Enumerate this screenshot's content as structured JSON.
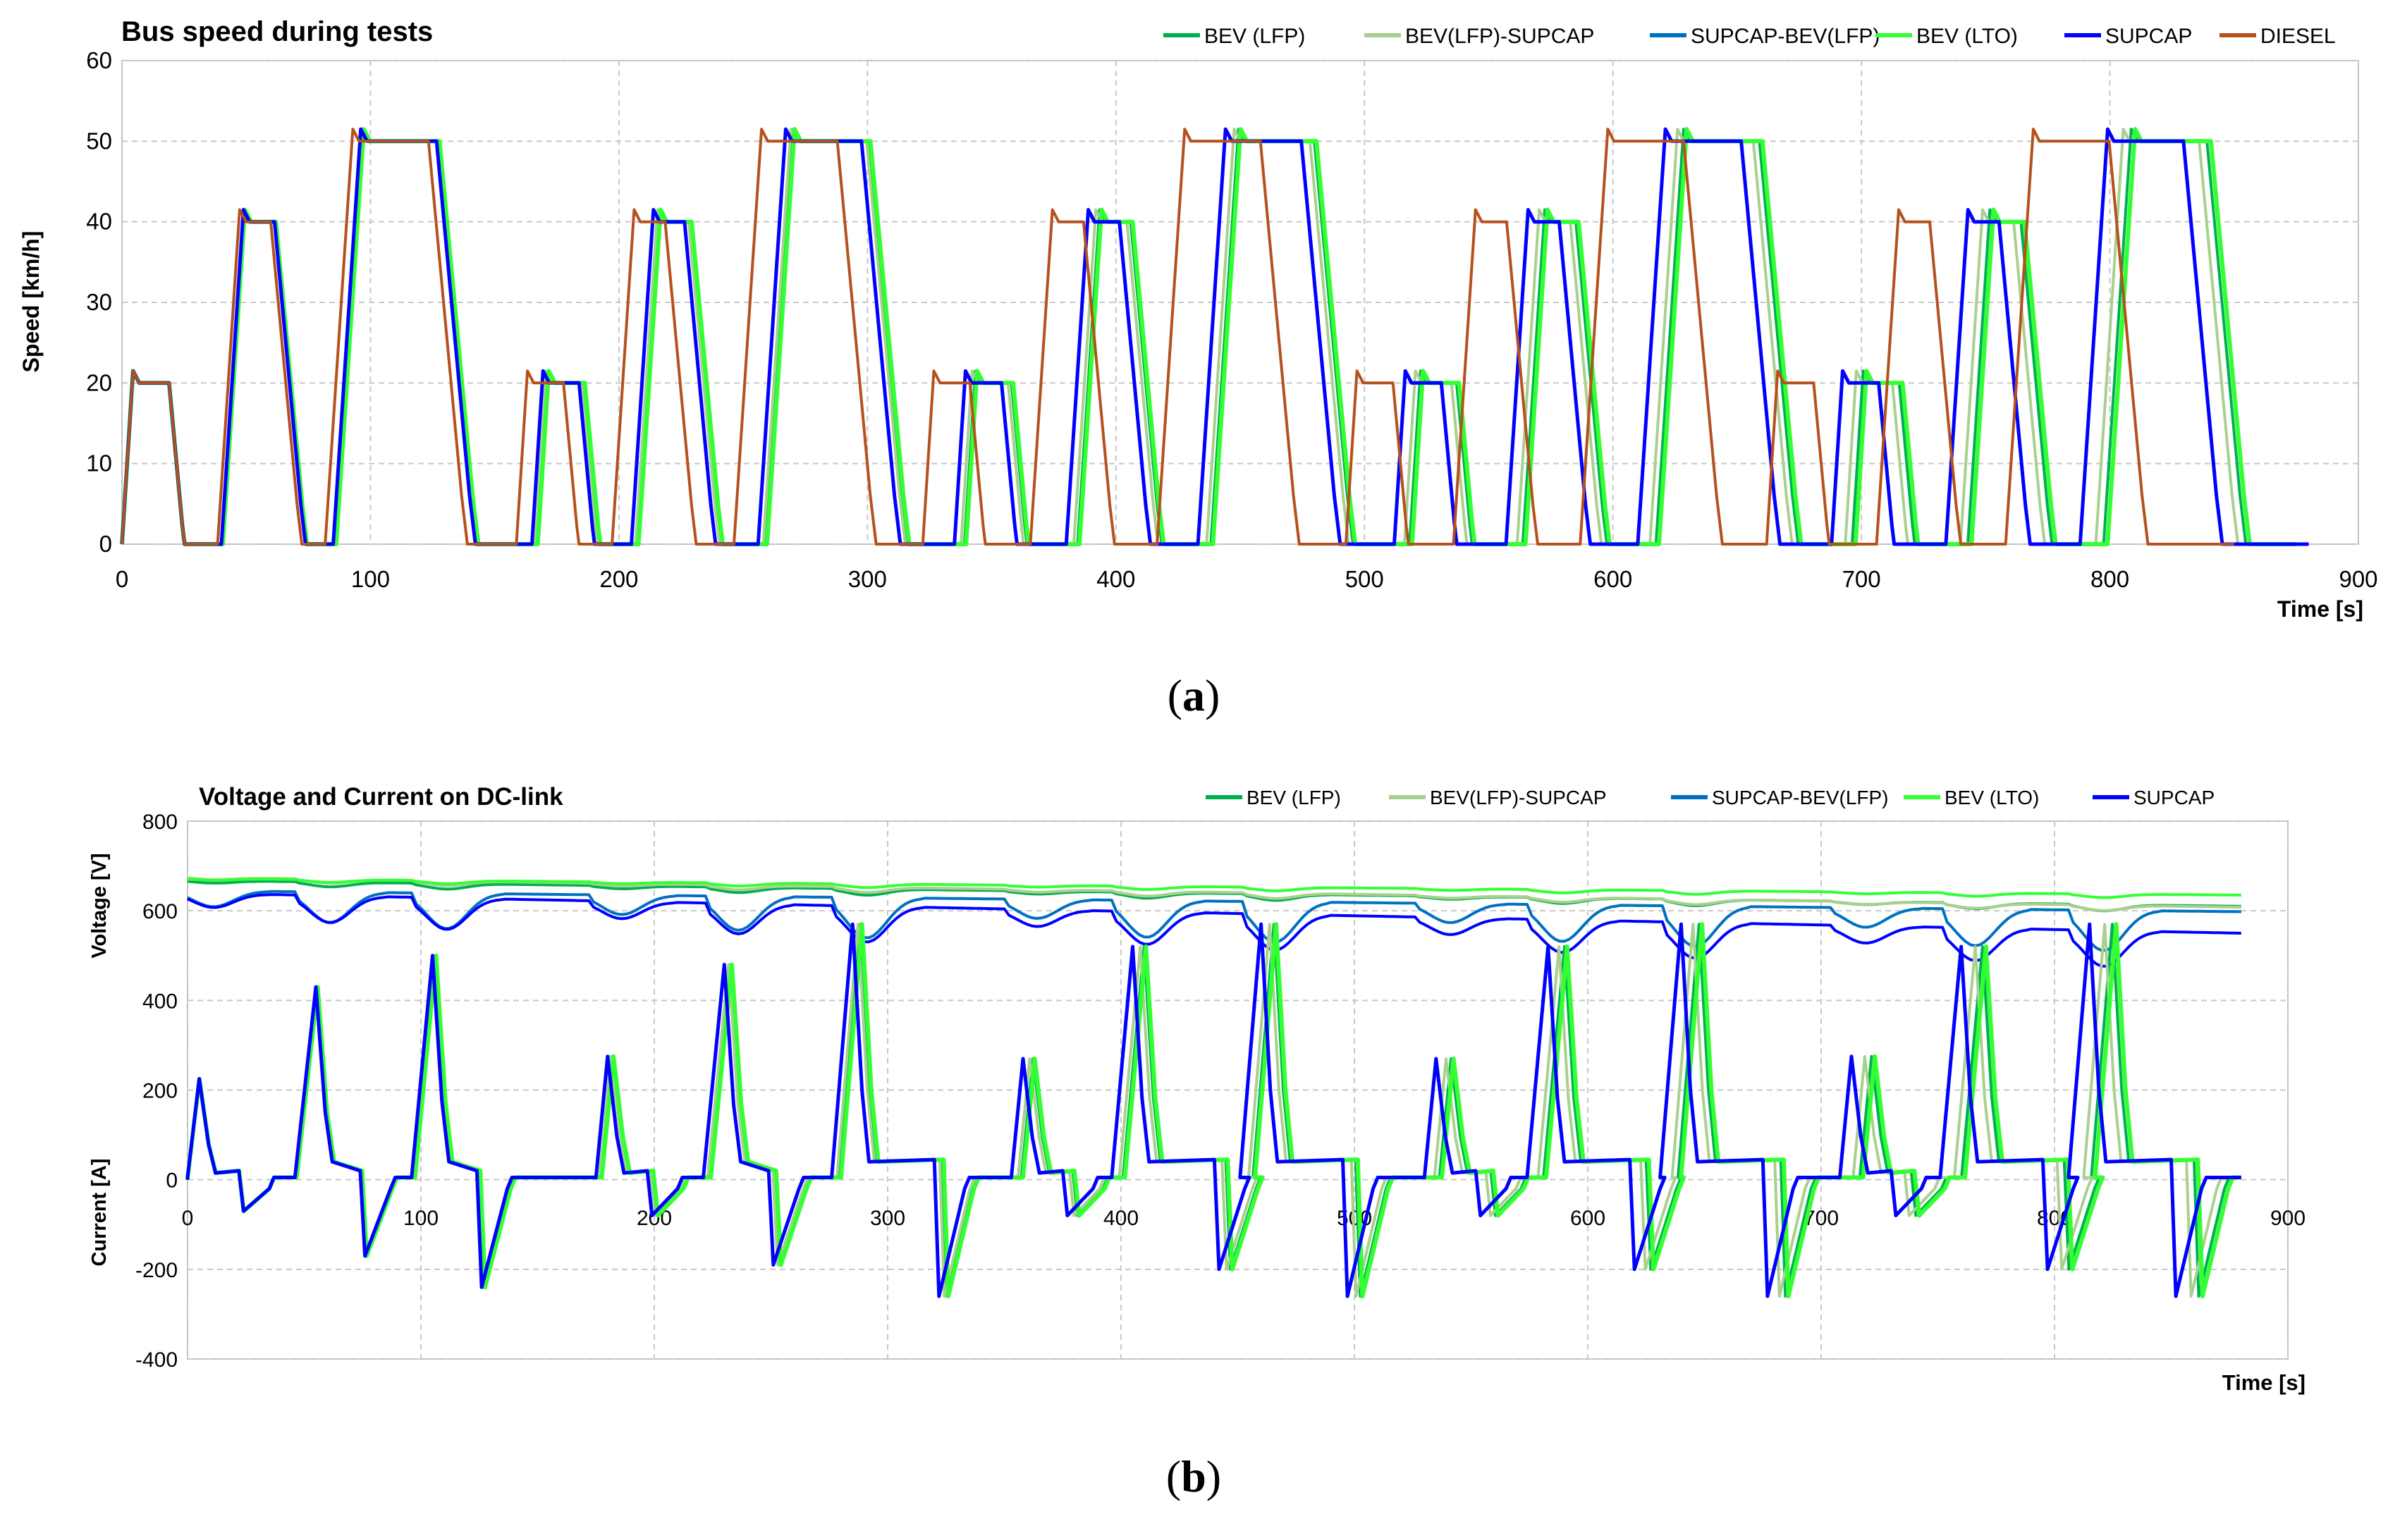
{
  "chart_data": [
    {
      "id": "a",
      "type": "line",
      "title": "Bus speed during tests",
      "xlabel": "Time [s]",
      "ylabel": "Speed  [km/h]",
      "xlim": [
        0,
        900
      ],
      "ylim": [
        0,
        60
      ],
      "xticks": [
        "0",
        "100",
        "200",
        "300",
        "400",
        "500",
        "600",
        "700",
        "800",
        "900"
      ],
      "yticks": [
        "0",
        "10",
        "20",
        "30",
        "40",
        "50",
        "60"
      ],
      "grid": true,
      "legend_position": "top",
      "caption_letter": "a",
      "caption": "(a)",
      "series": [
        {
          "name": "BEV (LFP)",
          "color": "#00b050",
          "width": 4,
          "profile": "speed",
          "delay": 0.012,
          "scale": 1.0,
          "end": 873
        },
        {
          "name": "BEV(LFP)-SUPCAP",
          "color": "#a9d08e",
          "width": 4,
          "profile": "speed",
          "delay": 0.008,
          "scale": 1.0,
          "end": 878
        },
        {
          "name": "SUPCAP-BEV(LFP)",
          "color": "#0070c0",
          "width": 4,
          "profile": "speed",
          "delay": 0.0,
          "scale": 1.0,
          "end": 880
        },
        {
          "name": "BEV (LTO)",
          "color": "#33ff33",
          "width": 6,
          "profile": "speed",
          "delay": 0.014,
          "scale": 1.0,
          "end": 875
        },
        {
          "name": "SUPCAP",
          "color": "#0000ff",
          "width": 5,
          "profile": "speed",
          "delay": 0.0,
          "scale": 1.0,
          "end": 880
        },
        {
          "name": "DIESEL",
          "color": "#b5511c",
          "width": 4,
          "profile": "speed",
          "delay": 0.0,
          "scale": 0.962,
          "end": 850
        }
      ],
      "segments": [
        [
          0,
          21.5,
          20
        ],
        [
          40,
          41.5,
          40
        ],
        [
          85,
          51.5,
          50
        ],
        [
          165,
          21.5,
          20
        ],
        [
          205,
          41.5,
          40
        ],
        [
          256,
          51.5,
          50
        ],
        [
          335,
          21.5,
          20
        ],
        [
          380,
          41.5,
          40
        ],
        [
          433,
          51.5,
          50
        ],
        [
          512,
          21.5,
          20
        ],
        [
          557,
          41.5,
          40
        ],
        [
          610,
          51.5,
          50
        ],
        [
          688,
          21.5,
          20
        ],
        [
          734,
          41.5,
          40
        ],
        [
          788,
          51.5,
          50
        ]
      ]
    },
    {
      "id": "b",
      "type": "line",
      "title": "Voltage and Current on DC-link",
      "xlabel": "Time [s]",
      "ylabel_voltage": "Voltage  [V]",
      "ylabel_current": "Current [A]",
      "xlim": [
        0,
        900
      ],
      "ylim": [
        -400,
        800
      ],
      "xticks": [
        "0",
        "100",
        "200",
        "300",
        "400",
        "500",
        "600",
        "700",
        "800",
        "900"
      ],
      "yticks": [
        "-400",
        "-200",
        "0",
        "200",
        "400",
        "600",
        "800"
      ],
      "grid": true,
      "legend_position": "top",
      "caption_letter": "b",
      "caption": "(b)",
      "voltage_series": [
        {
          "name": "BEV (LFP)",
          "color": "#00b050",
          "start": 668,
          "end": 610,
          "dip": 14
        },
        {
          "name": "BEV(LFP)-SUPCAP",
          "color": "#a9d08e",
          "start": 675,
          "end": 608,
          "dip": 12
        },
        {
          "name": "SUPCAP-BEV(LFP)",
          "color": "#0070c0",
          "start": 645,
          "end": 598,
          "dip": 90
        },
        {
          "name": "BEV (LTO)",
          "color": "#33ff33",
          "start": 672,
          "end": 635,
          "dip": 8
        },
        {
          "name": "SUPCAP",
          "color": "#0000ff",
          "start": 640,
          "end": 550,
          "dip": 80
        }
      ],
      "current_series": [
        {
          "name": "BEV (LFP)",
          "color": "#00b050",
          "delay": 0.012,
          "width": 4
        },
        {
          "name": "BEV(LFP)-SUPCAP",
          "color": "#a9d08e",
          "delay": 0.008,
          "width": 4
        },
        {
          "name": "SUPCAP-BEV(LFP)",
          "color": "#0070c0",
          "delay": 0.0,
          "width": 4
        },
        {
          "name": "BEV (LTO)",
          "color": "#33ff33",
          "delay": 0.014,
          "width": 6
        },
        {
          "name": "SUPCAP",
          "color": "#0000ff",
          "delay": 0.0,
          "width": 5
        }
      ],
      "current_peaks": [
        [
          5,
          225,
          -70
        ],
        [
          55,
          430,
          -170
        ],
        [
          105,
          500,
          -240
        ],
        [
          180,
          275,
          -80
        ],
        [
          230,
          480,
          -190
        ],
        [
          285,
          570,
          -260
        ],
        [
          358,
          270,
          -80
        ],
        [
          405,
          520,
          -200
        ],
        [
          460,
          570,
          -260
        ],
        [
          535,
          270,
          -80
        ],
        [
          583,
          520,
          -200
        ],
        [
          640,
          570,
          -260
        ],
        [
          713,
          275,
          -80
        ],
        [
          760,
          520,
          -200
        ],
        [
          815,
          570,
          -260
        ]
      ]
    }
  ]
}
